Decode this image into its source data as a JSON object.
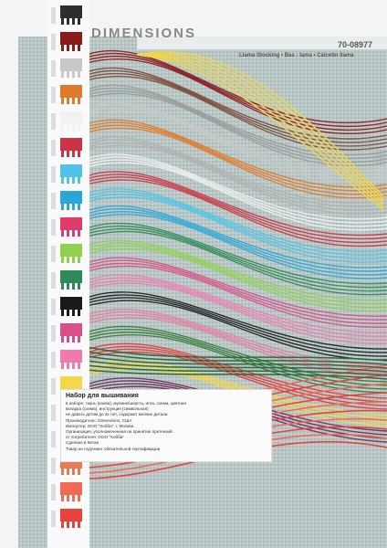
{
  "header": {
    "brand": "DIMENSIONS",
    "code": "70-08977",
    "product": "Llama Stocking • Bas : lama • Calcetín llama"
  },
  "label": {
    "title": "Набор для вышивания",
    "lines": [
      "в наборе: ткань (канва), мулине/шерсть, игла, схема, цветная",
      "вкладка (схема), инструкция (символьная)",
      "не давать детям до 3х лет, содержит мелкие детали",
      "Производитель: Dimensions, США",
      "Импортер: ООО \"Хобби\", г. Москва",
      "Организация, уполномоченная на принятие претензий",
      "от потребителя: ООО \"Хобби\"",
      "Сделано в Китае",
      "Товар не подлежит обязательной сертификации"
    ]
  }
}
